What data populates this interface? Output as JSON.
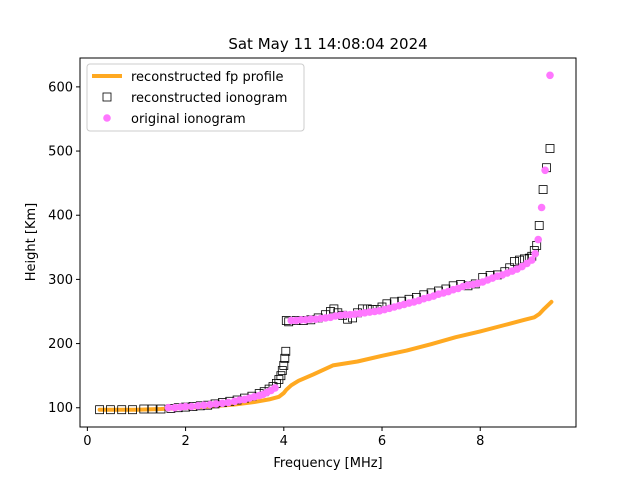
{
  "chart_data": {
    "type": "scatter",
    "title": "Sat May 11 14:08:04 2024",
    "xlabel": "Frequency [MHz]",
    "ylabel": "Height [Km]",
    "xlim": [
      -0.15,
      9.95
    ],
    "ylim": [
      70,
      645
    ],
    "xticks": [
      0,
      2,
      4,
      6,
      8
    ],
    "yticks": [
      100,
      200,
      300,
      400,
      500,
      600
    ],
    "grid": false,
    "legend_position": "top-left",
    "colors": {
      "profile": "#ffa921",
      "reconstructed_marker": "#000000",
      "original_marker": "#ff77ff"
    },
    "series": [
      {
        "name": "reconstructed fp profile",
        "kind": "line",
        "x": [
          0.25,
          1.0,
          1.5,
          2.0,
          2.5,
          3.0,
          3.4,
          3.7,
          3.9,
          4.0,
          4.05,
          4.15,
          4.3,
          4.6,
          5.0,
          5.5,
          6.0,
          6.5,
          7.0,
          7.5,
          8.0,
          8.5,
          8.9,
          9.1,
          9.2,
          9.3,
          9.45
        ],
        "y": [
          97,
          97,
          98,
          100,
          102,
          105,
          109,
          113,
          117,
          123,
          128,
          135,
          142,
          152,
          166,
          172,
          181,
          189,
          199,
          210,
          219,
          229,
          237,
          241,
          246,
          254,
          265
        ]
      },
      {
        "name": "reconstructed ionogram",
        "kind": "marker",
        "x": [
          0.25,
          0.47,
          0.7,
          0.92,
          1.15,
          1.32,
          1.5,
          1.7,
          1.85,
          2.0,
          2.15,
          2.3,
          2.45,
          2.6,
          2.75,
          2.9,
          3.05,
          3.2,
          3.35,
          3.5,
          3.6,
          3.7,
          3.78,
          3.85,
          3.9,
          3.94,
          3.97,
          4.0,
          4.02,
          4.04,
          4.05,
          4.1,
          4.25,
          4.4,
          4.55,
          4.7,
          4.85,
          4.95,
          5.02,
          5.1,
          5.2,
          5.3,
          5.4,
          5.5,
          5.6,
          5.7,
          5.8,
          5.9,
          6.0,
          6.1,
          6.25,
          6.4,
          6.55,
          6.7,
          6.85,
          7.0,
          7.15,
          7.3,
          7.45,
          7.6,
          7.75,
          7.9,
          8.05,
          8.2,
          8.35,
          8.5,
          8.6,
          8.7,
          8.8,
          8.9,
          9.0,
          9.05,
          9.1,
          9.15,
          9.2,
          9.28,
          9.35,
          9.42
        ],
        "y": [
          97,
          97,
          97,
          97,
          98,
          98,
          98,
          99,
          100,
          101,
          102,
          103,
          104,
          106,
          108,
          110,
          112,
          115,
          118,
          122,
          125,
          129,
          133,
          138,
          144,
          150,
          158,
          166,
          177,
          188,
          236,
          234,
          236,
          236,
          237,
          240,
          245,
          250,
          254,
          248,
          244,
          238,
          240,
          248,
          254,
          254,
          253,
          253,
          257,
          262,
          265,
          266,
          269,
          272,
          276,
          279,
          282,
          285,
          290,
          292,
          290,
          293,
          303,
          306,
          307,
          312,
          318,
          328,
          330,
          332,
          333,
          336,
          345,
          353,
          384,
          440,
          474,
          504
        ]
      },
      {
        "name": "original ionogram",
        "kind": "marker",
        "x": [
          1.65,
          1.78,
          1.9,
          2.0,
          2.12,
          2.25,
          2.37,
          2.5,
          2.62,
          2.75,
          2.87,
          3.0,
          3.1,
          3.2,
          3.3,
          3.4,
          3.5,
          3.58,
          3.66,
          3.74,
          3.82,
          4.15,
          4.25,
          4.35,
          4.45,
          4.55,
          4.65,
          4.75,
          4.85,
          4.95,
          5.05,
          5.15,
          5.25,
          5.35,
          5.45,
          5.55,
          5.65,
          5.75,
          5.85,
          5.95,
          6.05,
          6.15,
          6.25,
          6.35,
          6.45,
          6.55,
          6.65,
          6.75,
          6.85,
          6.95,
          7.05,
          7.15,
          7.25,
          7.35,
          7.45,
          7.55,
          7.65,
          7.75,
          7.85,
          7.95,
          8.05,
          8.15,
          8.25,
          8.35,
          8.45,
          8.55,
          8.65,
          8.75,
          8.85,
          8.95,
          9.05,
          9.12,
          9.18,
          9.25,
          9.32,
          9.42
        ],
        "y": [
          100,
          100,
          101,
          102,
          102,
          103,
          104,
          105,
          106,
          107,
          108,
          110,
          112,
          113,
          115,
          117,
          119,
          121,
          124,
          127,
          131,
          236,
          236,
          237,
          237,
          238,
          238,
          239,
          240,
          241,
          243,
          244,
          245,
          245,
          246,
          247,
          248,
          249,
          250,
          251,
          253,
          255,
          257,
          259,
          261,
          263,
          265,
          267,
          270,
          272,
          274,
          277,
          279,
          281,
          284,
          286,
          289,
          291,
          292,
          294,
          296,
          299,
          302,
          305,
          307,
          310,
          313,
          316,
          320,
          325,
          330,
          340,
          362,
          412,
          470,
          618
        ]
      }
    ]
  }
}
